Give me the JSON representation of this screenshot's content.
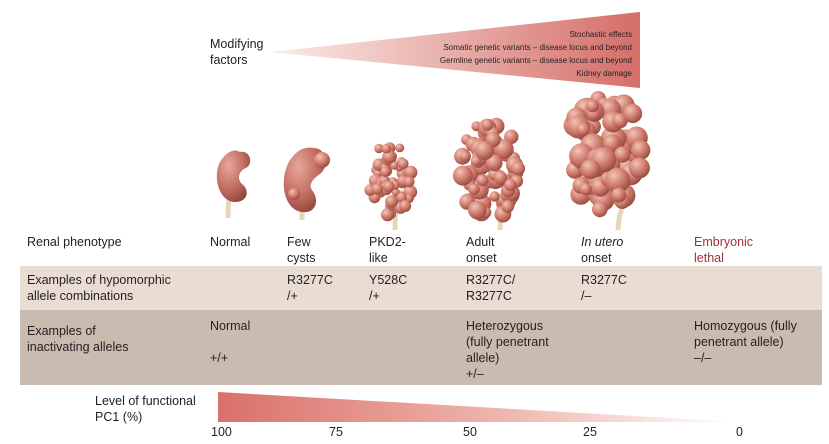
{
  "modifying": {
    "label_line1": "Modifying",
    "label_line2": "factors",
    "items": [
      "Stochastic effects",
      "Somatic genetic variants – disease locus and beyond",
      "Germline genetic variants – disease locus and beyond",
      "Kidney damage"
    ]
  },
  "rows": {
    "renal_label": "Renal phenotype",
    "hypo_label_line1": "Examples of hypomorphic",
    "hypo_label_line2": "allele combinations",
    "inact_label_line1": "Examples of",
    "inact_label_line2": "inactivating alleles"
  },
  "phenotypes": [
    {
      "line1": "Normal",
      "line2": ""
    },
    {
      "line1": "Few",
      "line2": "cysts"
    },
    {
      "line1": "PKD2-",
      "line2": "like"
    },
    {
      "line1": "Adult",
      "line2": "onset"
    },
    {
      "line1": "In utero",
      "line2": "onset"
    },
    {
      "line1": "Embryonic",
      "line2": "lethal"
    }
  ],
  "hypomorphic": [
    {
      "line1": "R3277C",
      "line2": "/+"
    },
    {
      "line1": "Y528C",
      "line2": "/+"
    },
    {
      "line1": "R3277C/",
      "line2": "R3277C"
    },
    {
      "line1": "R3277C",
      "line2": "/–"
    }
  ],
  "inactivating": {
    "normal_label": "Normal",
    "normal_genotype": "+/+",
    "het_line1": "Heterozygous",
    "het_line2": "(fully penetrant",
    "het_line3": "allele)",
    "het_genotype": "+/–",
    "homo_line1": "Homozygous (fully",
    "homo_line2": "penetrant allele)",
    "homo_genotype": "–/–"
  },
  "pc1": {
    "label_line1": "Level of functional",
    "label_line2": "PC1 (%)",
    "ticks": [
      "100",
      "75",
      "50",
      "25",
      "0"
    ],
    "gradient_from": "#d9706a",
    "gradient_to": "#ffffff"
  },
  "colors": {
    "kidney": "#b8635b",
    "cyst": "#c9766a",
    "triangle_start": "#f9e3de",
    "triangle_end": "#d6706a",
    "band_light": "#e9dcd3",
    "band_dark": "#c9bbb0",
    "accent": "#a3303a"
  }
}
